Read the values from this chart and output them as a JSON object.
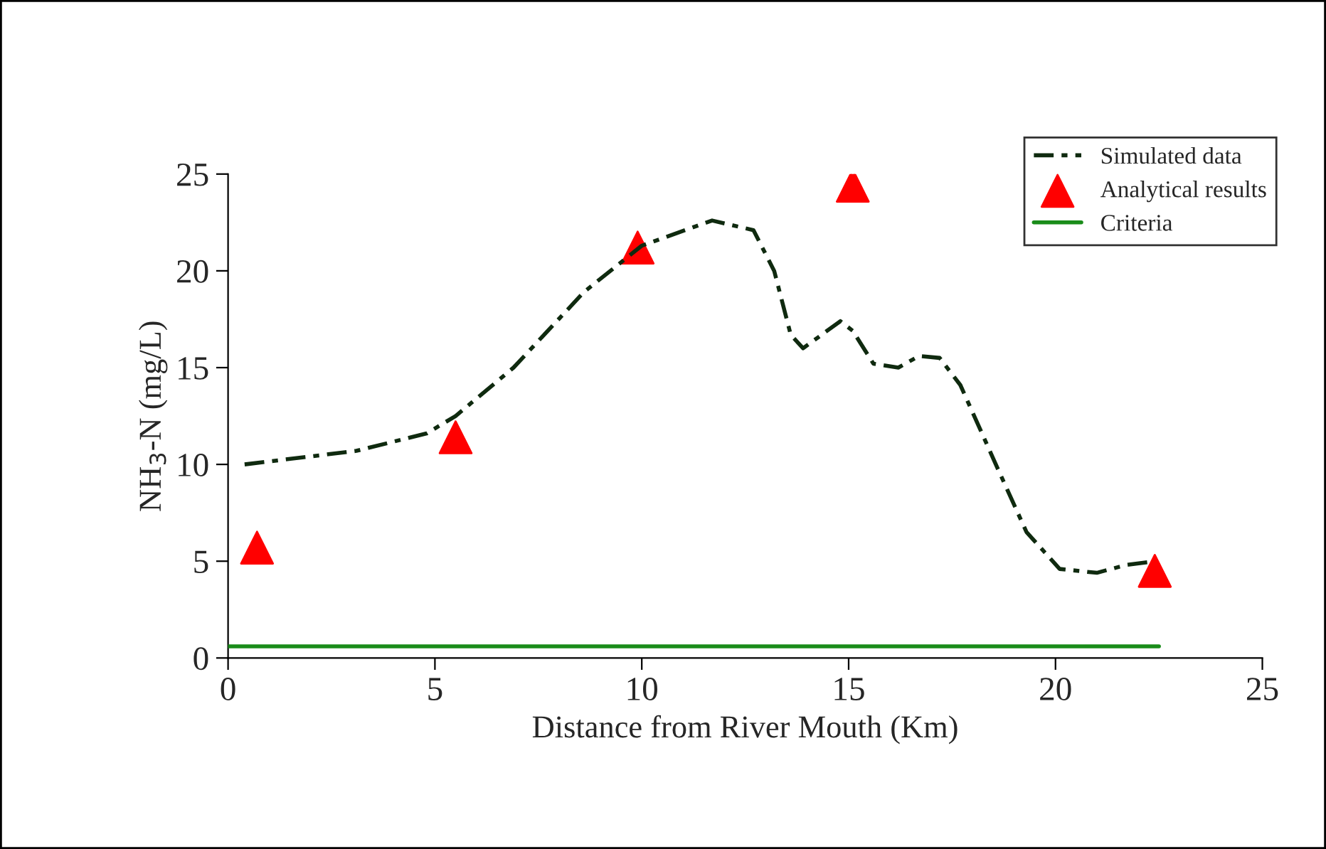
{
  "chart_data": {
    "type": "line",
    "xlabel": "Distance from River Mouth (Km)",
    "ylabel": "NH$_{3}$-N (mg/L)",
    "xlim": [
      0,
      25
    ],
    "xticks": [
      0,
      5,
      10,
      15,
      20,
      25
    ],
    "ylim": [
      0,
      25
    ],
    "yticks": [
      0,
      5,
      10,
      15,
      20,
      25
    ],
    "grid": false,
    "legend": "top right",
    "series": [
      {
        "name": "Simulated data",
        "color": "#0f2a0f",
        "line_style": "dashed",
        "marker": "none",
        "x": [
          0.4,
          3.1,
          4.8,
          5.5,
          6.9,
          8.6,
          10.0,
          11.7,
          12.7,
          13.2,
          13.6,
          13.9,
          14.8,
          15.1,
          15.6,
          16.2,
          16.7,
          17.2,
          17.7,
          18.6,
          19.3,
          20.1,
          21.0,
          21.7,
          22.4
        ],
        "values": [
          10.0,
          10.7,
          11.6,
          12.5,
          15.0,
          18.9,
          21.3,
          22.6,
          22.1,
          20.0,
          16.7,
          16.0,
          17.4,
          16.9,
          15.2,
          15.0,
          15.6,
          15.5,
          14.1,
          9.8,
          6.5,
          4.6,
          4.4,
          4.8,
          5.0
        ]
      },
      {
        "name": "Analytical results",
        "type": "scatter",
        "color": "#ff0000",
        "marker": "triangle",
        "x": [
          0.7,
          5.5,
          9.9,
          15.1,
          22.4
        ],
        "values": [
          5.7,
          11.4,
          21.2,
          24.4,
          4.5
        ]
      },
      {
        "name": "Criteria",
        "color": "#1a8c1a",
        "line_style": "solid",
        "marker": "none",
        "x": [
          0,
          22.5
        ],
        "values": [
          0.6,
          0.6
        ]
      }
    ]
  }
}
